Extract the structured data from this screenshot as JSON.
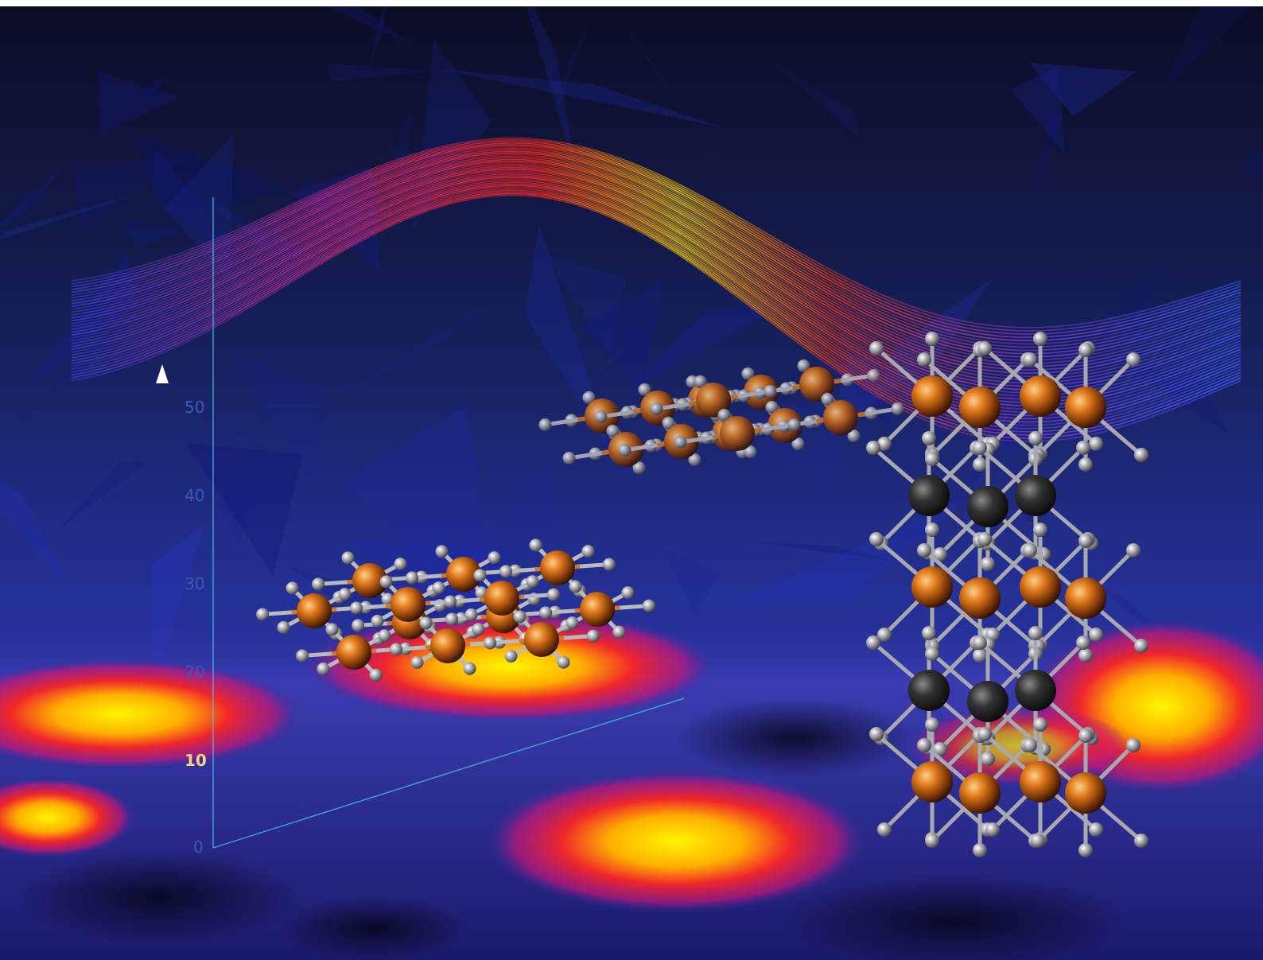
{
  "axis": {
    "ticks": [
      {
        "value": "0",
        "highlight": false
      },
      {
        "value": "10",
        "highlight": true
      },
      {
        "value": "20",
        "highlight": false
      },
      {
        "value": "30",
        "highlight": false
      },
      {
        "value": "40",
        "highlight": false
      },
      {
        "value": "50",
        "highlight": false
      }
    ]
  },
  "colors": {
    "background_dark": "#0d1030",
    "background_mid": "#1c2a78",
    "heat_red": "#e8242a",
    "heat_yellow": "#fff200",
    "atom_metal": "#d8761c",
    "atom_ligand": "#a8a8ad",
    "atom_dark": "#2a2a2a",
    "axis_line": "#45c6e8"
  },
  "objects": [
    "wave-ribbon",
    "cubic-lattice",
    "translucent-cubic-lattice",
    "layered-octahedral-lattice",
    "heatmap-floor",
    "vertical-arrow"
  ]
}
